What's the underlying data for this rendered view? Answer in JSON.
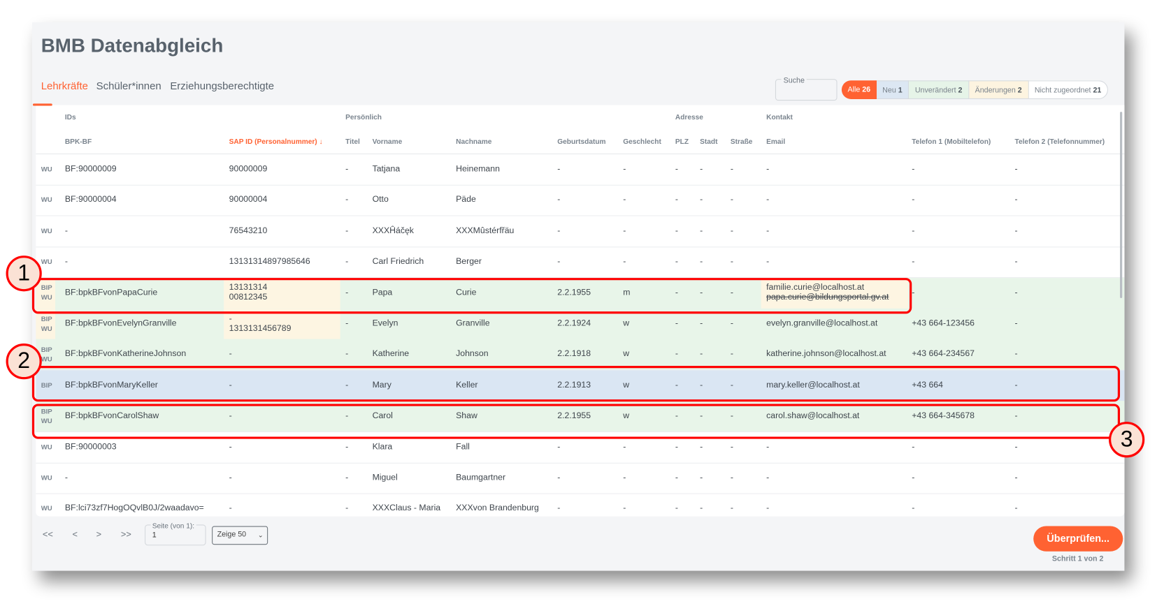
{
  "app": {
    "title": "BMB Datenabgleich"
  },
  "tabs": [
    {
      "label": "Lehrkräfte",
      "active": true
    },
    {
      "label": "Schüler*innen",
      "active": false
    },
    {
      "label": "Erziehungsberechtigte",
      "active": false
    }
  ],
  "search": {
    "label": "Suche",
    "value": ""
  },
  "filters": [
    {
      "label": "Alle",
      "count": "26",
      "active": true
    },
    {
      "label": "Neu",
      "count": "1"
    },
    {
      "label": "Unverändert",
      "count": "2"
    },
    {
      "label": "Änderungen",
      "count": "2"
    },
    {
      "label": "Nicht zugeordnet",
      "count": "21"
    }
  ],
  "colors": {
    "accent": "#ff6232",
    "new": "#dae6f3",
    "unchanged": "#e8f5e9",
    "changed": "#fdf5e2"
  },
  "table": {
    "groups": {
      "ids": "IDs",
      "personal": "Persönlich",
      "address": "Adresse",
      "contact": "Kontakt"
    },
    "columns": {
      "bpk": "BPK-BF",
      "sap": "SAP ID (Personalnummer) ↓",
      "titel": "Titel",
      "vorname": "Vorname",
      "nachname": "Nachname",
      "geb": "Geburtsdatum",
      "geschlecht": "Geschlecht",
      "plz": "PLZ",
      "stadt": "Stadt",
      "strasse": "Straße",
      "email": "Email",
      "tel1": "Telefon 1 (Mobiltelefon)",
      "tel2": "Telefon 2 (Telefonnummer)"
    },
    "sorted_column": "sap",
    "rows": [
      {
        "status": "",
        "tag": [
          "WU"
        ],
        "bpk": "BF:90000009",
        "sap": [
          "90000009"
        ],
        "titel": "-",
        "vorname": "Tatjana",
        "nachname": "Heinemann",
        "geb": "-",
        "geschlecht": "-",
        "plz": "-",
        "stadt": "-",
        "strasse": "-",
        "email": [
          "-"
        ],
        "tel1": "-",
        "tel2": "-",
        "changed": []
      },
      {
        "status": "",
        "tag": [
          "WU"
        ],
        "bpk": "BF:90000004",
        "sap": [
          "90000004"
        ],
        "titel": "-",
        "vorname": "Otto",
        "nachname": "Päde",
        "geb": "-",
        "geschlecht": "-",
        "plz": "-",
        "stadt": "-",
        "strasse": "-",
        "email": [
          "-"
        ],
        "tel1": "-",
        "tel2": "-",
        "changed": []
      },
      {
        "status": "",
        "tag": [
          "WU"
        ],
        "bpk": "-",
        "sap": [
          "76543210"
        ],
        "titel": "-",
        "vorname": "XXXĤáčęk",
        "nachname": "XXXMûstérfřäu",
        "geb": "-",
        "geschlecht": "-",
        "plz": "-",
        "stadt": "-",
        "strasse": "-",
        "email": [
          "-"
        ],
        "tel1": "-",
        "tel2": "-",
        "changed": []
      },
      {
        "status": "",
        "tag": [
          "WU"
        ],
        "bpk": "-",
        "sap": [
          "13131314897985646"
        ],
        "titel": "-",
        "vorname": "Carl Friedrich",
        "nachname": "Berger",
        "geb": "-",
        "geschlecht": "-",
        "plz": "-",
        "stadt": "-",
        "strasse": "-",
        "email": [
          "-"
        ],
        "tel1": "-",
        "tel2": "-",
        "changed": []
      },
      {
        "status": "unchanged",
        "tag": [
          "BIP",
          "WU"
        ],
        "bpk": "BF:bpkBFvonPapaCurie",
        "sap": [
          "13131314",
          "00812345"
        ],
        "titel": "-",
        "vorname": "Papa",
        "nachname": "Curie",
        "geb": "2.2.1955",
        "geschlecht": "m",
        "plz": "-",
        "stadt": "-",
        "strasse": "-",
        "email": [
          "familie.curie@localhost.at",
          "papa.curie@bildungsportal.gv.at"
        ],
        "email_struck": [
          false,
          true
        ],
        "tel1": "-",
        "tel2": "-",
        "changed": [
          "tag",
          "sap",
          "email"
        ]
      },
      {
        "status": "unchanged",
        "tag": [
          "BIP",
          "WU"
        ],
        "bpk": "BF:bpkBFvonEvelynGranville",
        "sap": [
          "-",
          "1313131456789"
        ],
        "titel": "-",
        "vorname": "Evelyn",
        "nachname": "Granville",
        "geb": "2.2.1924",
        "geschlecht": "w",
        "plz": "-",
        "stadt": "-",
        "strasse": "-",
        "email": [
          "evelyn.granville@localhost.at"
        ],
        "tel1": "+43 664-123456",
        "tel2": "-",
        "changed": [
          "tag",
          "sap"
        ]
      },
      {
        "status": "unchanged",
        "tag": [
          "BIP",
          "WU"
        ],
        "bpk": "BF:bpkBFvonKatherineJohnson",
        "sap": [
          "-"
        ],
        "titel": "-",
        "vorname": "Katherine",
        "nachname": "Johnson",
        "geb": "2.2.1918",
        "geschlecht": "w",
        "plz": "-",
        "stadt": "-",
        "strasse": "-",
        "email": [
          "katherine.johnson@localhost.at"
        ],
        "tel1": "+43 664-234567",
        "tel2": "-",
        "changed": []
      },
      {
        "status": "new",
        "tag": [
          "BIP"
        ],
        "bpk": "BF:bpkBFvonMaryKeller",
        "sap": [
          "-"
        ],
        "titel": "-",
        "vorname": "Mary",
        "nachname": "Keller",
        "geb": "2.2.1913",
        "geschlecht": "w",
        "plz": "-",
        "stadt": "-",
        "strasse": "-",
        "email": [
          "mary.keller@localhost.at"
        ],
        "tel1": "+43 664",
        "tel2": "-",
        "changed": []
      },
      {
        "status": "unchanged",
        "tag": [
          "BIP",
          "WU"
        ],
        "bpk": "BF:bpkBFvonCarolShaw",
        "sap": [
          "-"
        ],
        "titel": "-",
        "vorname": "Carol",
        "nachname": "Shaw",
        "geb": "2.2.1955",
        "geschlecht": "w",
        "plz": "-",
        "stadt": "-",
        "strasse": "-",
        "email": [
          "carol.shaw@localhost.at"
        ],
        "tel1": "+43 664-345678",
        "tel2": "-",
        "changed": []
      },
      {
        "status": "",
        "tag": [
          "WU"
        ],
        "bpk": "BF:90000003",
        "sap": [
          "-"
        ],
        "titel": "-",
        "vorname": "Klara",
        "nachname": "Fall",
        "geb": "-",
        "geschlecht": "-",
        "plz": "-",
        "stadt": "-",
        "strasse": "-",
        "email": [
          "-"
        ],
        "tel1": "-",
        "tel2": "-",
        "changed": []
      },
      {
        "status": "",
        "tag": [
          "WU"
        ],
        "bpk": "-",
        "sap": [
          "-"
        ],
        "titel": "-",
        "vorname": "Miguel",
        "nachname": "Baumgartner",
        "geb": "-",
        "geschlecht": "-",
        "plz": "-",
        "stadt": "-",
        "strasse": "-",
        "email": [
          "-"
        ],
        "tel1": "-",
        "tel2": "-",
        "changed": []
      },
      {
        "status": "",
        "tag": [
          "WU"
        ],
        "bpk": "BF:lci73zf7HogOQvlB0J/2waadavo=",
        "sap": [
          "-"
        ],
        "titel": "-",
        "vorname": "XXXClaus - Maria",
        "nachname": "XXXvon Brandenburg",
        "geb": "-",
        "geschlecht": "-",
        "plz": "-",
        "stadt": "-",
        "strasse": "-",
        "email": [
          "-"
        ],
        "tel1": "-",
        "tel2": "-",
        "changed": []
      }
    ]
  },
  "pagination": {
    "first": "<<",
    "prev": "<",
    "next": ">",
    "last": ">>",
    "page_label": "Seite (von 1):",
    "page_value": "1",
    "page_size": "Zeige 50"
  },
  "actions": {
    "review": "Überprüfen...",
    "step": "Schritt 1 von 2"
  },
  "annotations": [
    "1",
    "2",
    "3"
  ]
}
